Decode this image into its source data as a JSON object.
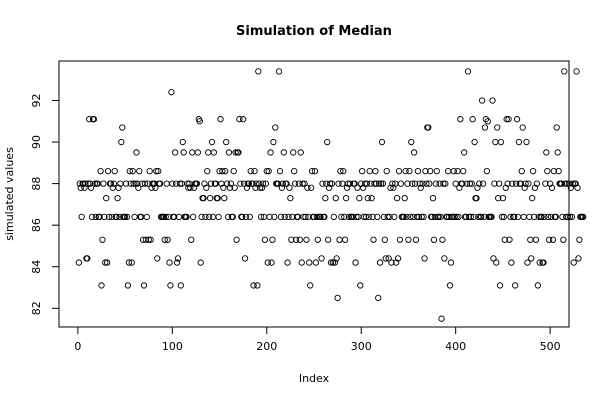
{
  "chart_data": {
    "type": "scatter",
    "title": "Simulation of Median",
    "xlabel": "Index",
    "ylabel": "simulated values",
    "xlim": [
      -20,
      520
    ],
    "ylim": [
      81.1,
      93.9
    ],
    "x_ticks": [
      0,
      100,
      200,
      300,
      400,
      500
    ],
    "y_ticks": [
      82,
      84,
      86,
      88,
      90,
      92
    ],
    "marker": "open-circle",
    "series": [
      {
        "values": [
          84.2,
          88.0,
          87.8,
          86.4,
          88.0,
          88.0,
          87.8,
          88.0,
          84.4,
          84.4,
          88.0,
          91.1,
          88.0,
          87.8,
          86.4,
          91.1,
          91.1,
          88.0,
          86.4,
          88.0,
          88.0,
          86.4,
          86.4,
          88.6,
          83.1,
          85.3,
          88.0,
          86.4,
          84.2,
          87.3,
          84.2,
          88.6,
          86.4,
          88.0,
          88.0,
          86.4,
          87.8,
          88.0,
          88.6,
          86.4,
          86.4,
          87.3,
          87.8,
          86.4,
          88.0,
          90.0,
          90.7,
          86.4,
          86.4,
          86.4,
          88.0,
          86.4,
          83.1,
          84.2,
          88.6,
          88.0,
          84.2,
          88.6,
          88.0,
          86.4,
          88.0,
          89.5,
          88.0,
          87.8,
          88.6,
          86.4,
          86.4,
          88.0,
          85.3,
          83.1,
          88.0,
          85.3,
          86.4,
          88.0,
          85.3,
          88.6,
          85.3,
          87.8,
          88.0,
          88.0,
          88.0,
          87.8,
          88.6,
          84.4,
          88.6,
          88.0,
          88.0,
          86.4,
          86.4,
          86.4,
          86.4,
          85.3,
          86.4,
          88.0,
          85.3,
          86.4,
          84.2,
          83.1,
          92.4,
          88.0,
          86.4,
          86.4,
          89.5,
          88.0,
          84.2,
          84.4,
          86.4,
          88.0,
          83.1,
          88.0,
          90.0,
          89.5,
          86.4,
          86.4,
          86.4,
          88.0,
          87.8,
          88.0,
          87.8,
          85.3,
          89.5,
          86.4,
          87.8,
          88.0,
          88.0,
          88.0,
          89.5,
          91.1,
          91.0,
          84.2,
          86.4,
          87.3,
          87.3,
          88.0,
          86.4,
          87.8,
          88.6,
          89.5,
          86.4,
          87.3,
          88.0,
          90.0,
          86.4,
          89.5,
          88.0,
          88.0,
          87.3,
          87.3,
          86.4,
          88.6,
          91.1,
          88.0,
          88.6,
          87.8,
          87.3,
          88.6,
          90.0,
          88.0,
          86.4,
          89.5,
          87.8,
          88.0,
          86.4,
          86.4,
          88.6,
          87.8,
          89.5,
          85.3,
          89.5,
          89.5,
          91.1,
          88.0,
          86.4,
          86.4,
          91.1,
          88.0,
          84.4,
          86.4,
          87.8,
          88.0,
          88.0,
          86.4,
          88.6,
          88.0,
          88.0,
          83.1,
          88.6,
          87.8,
          88.0,
          83.1,
          93.4,
          88.0,
          87.8,
          86.4,
          87.8,
          88.0,
          86.4,
          85.3,
          88.0,
          88.6,
          84.2,
          88.6,
          86.4,
          89.5,
          84.2,
          85.3,
          90.0,
          86.4,
          90.7,
          88.0,
          88.0,
          88.0,
          93.4,
          88.6,
          86.4,
          87.8,
          88.0,
          89.5,
          86.4,
          88.0,
          88.0,
          84.2,
          86.4,
          87.8,
          87.3,
          85.3,
          86.4,
          89.5,
          88.6,
          88.0,
          85.3,
          86.4,
          86.4,
          88.0,
          85.3,
          89.5,
          84.2,
          88.0,
          86.4,
          88.0,
          86.4,
          85.3,
          87.8,
          86.4,
          84.2,
          83.1,
          87.8,
          88.6,
          86.4,
          86.4,
          88.6,
          84.2,
          86.4,
          85.3,
          86.4,
          86.4,
          86.4,
          84.4,
          88.0,
          86.4,
          86.4,
          87.3,
          88.0,
          90.0,
          85.3,
          87.8,
          88.0,
          84.2,
          88.0,
          84.2,
          86.4,
          84.2,
          87.3,
          84.4,
          82.5,
          88.0,
          85.3,
          88.6,
          86.4,
          88.0,
          88.6,
          86.4,
          85.3,
          87.3,
          87.8,
          88.0,
          86.4,
          88.0,
          86.4,
          86.4,
          86.4,
          88.0,
          88.0,
          84.2,
          86.4,
          87.8,
          86.4,
          87.3,
          83.1,
          88.0,
          88.6,
          87.8,
          86.4,
          88.0,
          86.4,
          88.0,
          87.3,
          86.4,
          88.6,
          88.0,
          87.3,
          86.4,
          85.3,
          88.0,
          88.6,
          88.0,
          86.4,
          82.5,
          88.0,
          84.2,
          88.0,
          90.0,
          88.0,
          86.4,
          85.3,
          84.4,
          88.6,
          86.4,
          84.4,
          86.4,
          87.8,
          84.2,
          88.0,
          87.8,
          86.4,
          88.0,
          84.2,
          87.3,
          84.4,
          88.6,
          85.3,
          88.0,
          86.4,
          86.4,
          86.4,
          87.3,
          88.6,
          86.4,
          88.0,
          85.3,
          88.6,
          86.4,
          90.0,
          88.0,
          86.4,
          89.5,
          88.0,
          85.3,
          86.4,
          88.6,
          86.4,
          88.0,
          87.8,
          86.4,
          88.0,
          86.4,
          84.4,
          88.6,
          88.0,
          90.7,
          90.7,
          88.0,
          88.6,
          86.4,
          86.4,
          87.3,
          85.3,
          86.4,
          88.0,
          88.6,
          86.4,
          86.4,
          88.0,
          86.4,
          81.5,
          85.3,
          88.0,
          84.4,
          88.0,
          86.4,
          86.4,
          88.6,
          86.4,
          83.1,
          84.2,
          86.4,
          86.4,
          88.6,
          86.4,
          88.0,
          86.4,
          88.6,
          86.4,
          87.8,
          91.1,
          88.0,
          88.0,
          88.6,
          89.5,
          86.4,
          86.4,
          88.0,
          93.4,
          86.4,
          88.0,
          86.4,
          88.0,
          91.1,
          86.4,
          90.0,
          87.3,
          87.3,
          87.8,
          86.4,
          88.0,
          86.4,
          86.4,
          92.0,
          88.0,
          86.4,
          90.7,
          91.1,
          88.6,
          91.0,
          86.4,
          86.4,
          86.4,
          86.4,
          92.0,
          84.4,
          88.0,
          90.0,
          84.2,
          90.7,
          87.3,
          88.0,
          83.1,
          90.0,
          86.4,
          87.3,
          86.4,
          85.3,
          87.8,
          91.1,
          88.0,
          91.1,
          85.3,
          86.4,
          84.2,
          88.0,
          86.4,
          86.4,
          83.1,
          88.0,
          91.1,
          86.4,
          90.0,
          88.0,
          88.0,
          88.6,
          90.7,
          86.4,
          87.8,
          88.0,
          90.0,
          84.2,
          88.0,
          86.4,
          85.3,
          84.4,
          87.3,
          88.6,
          86.4,
          87.8,
          85.3,
          88.0,
          83.1,
          86.4,
          84.2,
          86.4,
          86.4,
          84.2,
          84.2,
          86.4,
          88.0,
          89.5,
          88.6,
          86.4,
          85.3,
          88.0,
          86.4,
          87.8,
          85.3,
          88.6,
          86.4,
          86.4,
          90.7,
          89.5,
          88.6,
          88.0,
          88.0,
          88.0,
          86.4,
          85.3,
          93.4,
          88.0,
          86.4,
          88.0,
          86.4,
          88.0,
          86.4,
          87.8,
          86.4,
          88.0,
          84.2,
          88.0,
          88.0,
          93.4,
          87.8,
          84.4,
          85.3,
          86.4,
          86.4,
          86.4,
          86.4
        ]
      }
    ]
  }
}
